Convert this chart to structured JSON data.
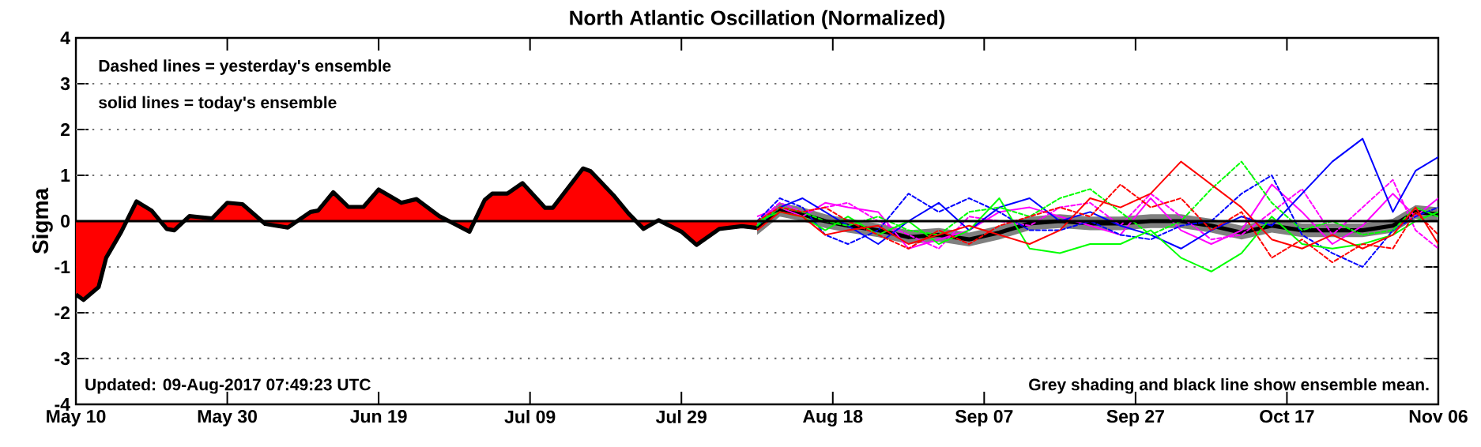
{
  "chart_data": {
    "type": "line",
    "title": "North Atlantic Oscillation (Normalized)",
    "ylabel": "Sigma",
    "xlim": [
      "2017-05-10",
      "2017-11-06"
    ],
    "xticks": [
      {
        "value": "2017-05-10",
        "label": "May 10"
      },
      {
        "value": "2017-05-30",
        "label": "May 30"
      },
      {
        "value": "2017-06-19",
        "label": "Jun 19"
      },
      {
        "value": "2017-07-09",
        "label": "Jul 09"
      },
      {
        "value": "2017-07-29",
        "label": "Jul 29"
      },
      {
        "value": "2017-08-18",
        "label": "Aug 18"
      },
      {
        "value": "2017-09-07",
        "label": "Sep 07"
      },
      {
        "value": "2017-09-27",
        "label": "Sep 27"
      },
      {
        "value": "2017-10-17",
        "label": "Oct 17"
      },
      {
        "value": "2017-11-06",
        "label": "Nov 06"
      }
    ],
    "ylim": [
      -4,
      4
    ],
    "yticks": [
      -4,
      -3,
      -2,
      -1,
      0,
      1,
      2,
      3,
      4
    ],
    "grid": "y",
    "ref_lines": [
      {
        "axis": "y",
        "value": 0,
        "color": "#000000",
        "line_style": "solid"
      }
    ],
    "annotations": [
      "Dashed lines = yesterday's ensemble",
      "solid lines = today's ensemble",
      "Updated: 09-Aug-2017 07:49:23 UTC",
      "Grey shading and black line show ensemble mean."
    ],
    "series": [
      {
        "type": "area",
        "color": "#ff0000",
        "x": [
          "2017-05-10",
          "2017-05-11",
          "2017-05-13",
          "2017-05-14",
          "2017-05-16",
          "2017-05-18",
          "2017-05-20",
          "2017-05-22",
          "2017-05-23",
          "2017-05-25",
          "2017-05-28",
          "2017-05-30",
          "2017-06-01",
          "2017-06-04",
          "2017-06-07",
          "2017-06-10",
          "2017-06-11",
          "2017-06-13",
          "2017-06-15",
          "2017-06-17",
          "2017-06-19",
          "2017-06-22",
          "2017-06-24",
          "2017-06-27",
          "2017-06-29",
          "2017-07-01",
          "2017-07-03",
          "2017-07-04",
          "2017-07-06",
          "2017-07-08",
          "2017-07-11",
          "2017-07-12",
          "2017-07-16",
          "2017-07-17",
          "2017-07-20",
          "2017-07-22",
          "2017-07-24",
          "2017-07-26",
          "2017-07-29",
          "2017-07-31",
          "2017-08-03",
          "2017-08-06",
          "2017-08-08"
        ],
        "values": [
          -1.6,
          -1.72,
          -1.44,
          -0.8,
          -0.23,
          0.43,
          0.23,
          -0.17,
          -0.2,
          0.11,
          0.06,
          0.4,
          0.37,
          -0.06,
          -0.14,
          0.2,
          0.23,
          0.63,
          0.31,
          0.31,
          0.69,
          0.4,
          0.48,
          0.11,
          -0.06,
          -0.23,
          0.46,
          0.6,
          0.6,
          0.83,
          0.29,
          0.29,
          1.15,
          1.09,
          0.57,
          0.17,
          -0.17,
          0.02,
          -0.23,
          -0.52,
          -0.17,
          -0.11,
          -0.15
        ]
      },
      {
        "color": "#ff0000",
        "line_style": "solid",
        "values": [
          -0.2,
          0.2,
          0.1,
          -0.3,
          -0.2,
          -0.1,
          -0.5,
          -0.3,
          -0.1,
          -0.3,
          -0.5,
          -0.2,
          0.5,
          0.3,
          0.6,
          1.3,
          0.8,
          0.3,
          -0.4,
          -0.6,
          -0.3,
          -0.6,
          -0.3,
          0.3,
          -0.5
        ]
      },
      {
        "color": "#ff0000",
        "line_style": "dashed",
        "values": [
          0.0,
          0.3,
          0.2,
          0.3,
          0.0,
          -0.3,
          -0.6,
          -0.2,
          -0.5,
          -0.1,
          0.1,
          0.3,
          0.1,
          0.8,
          0.3,
          0.5,
          -0.2,
          0.2,
          -0.8,
          -0.4,
          -0.9,
          -0.5,
          -0.6,
          0.2,
          -0.3
        ]
      },
      {
        "color": "#00ff00",
        "line_style": "solid",
        "values": [
          0.0,
          0.2,
          0.1,
          -0.2,
          0.1,
          -0.3,
          0.0,
          -0.5,
          -0.2,
          0.5,
          -0.6,
          -0.7,
          -0.5,
          -0.5,
          -0.2,
          -0.8,
          -1.1,
          -0.7,
          0.1,
          -0.5,
          -0.6,
          -0.5,
          -0.3,
          0.0,
          0.2
        ]
      },
      {
        "color": "#00ff00",
        "line_style": "dashed",
        "values": [
          -0.1,
          0.3,
          0.2,
          0.0,
          -0.1,
          0.1,
          -0.2,
          -0.3,
          0.2,
          0.3,
          0.1,
          0.5,
          0.7,
          0.2,
          -0.3,
          0.0,
          0.7,
          1.3,
          0.4,
          -0.2,
          0.0,
          -0.3,
          -0.2,
          0.3,
          0.1
        ]
      },
      {
        "color": "#0000ff",
        "line_style": "solid",
        "values": [
          -0.1,
          0.3,
          0.5,
          0.2,
          -0.1,
          -0.5,
          0.0,
          0.4,
          -0.2,
          0.3,
          0.5,
          0.0,
          0.2,
          -0.1,
          -0.3,
          -0.6,
          -0.2,
          0.1,
          -0.1,
          0.6,
          1.3,
          1.8,
          0.2,
          1.1,
          1.4
        ]
      },
      {
        "color": "#0000ff",
        "line_style": "dashed",
        "values": [
          0.0,
          0.5,
          0.3,
          -0.3,
          -0.5,
          -0.2,
          0.6,
          0.2,
          0.5,
          0.2,
          -0.2,
          -0.2,
          0.0,
          -0.3,
          -0.4,
          -0.1,
          0.0,
          0.6,
          1.0,
          -0.3,
          -0.7,
          -1.0,
          -0.2,
          0.1,
          0.3
        ]
      },
      {
        "color": "#ff00ff",
        "line_style": "solid",
        "values": [
          0.1,
          0.3,
          0.1,
          0.4,
          0.3,
          0.2,
          -0.6,
          -0.4,
          -0.2,
          0.2,
          0.3,
          0.1,
          -0.1,
          -0.3,
          0.5,
          -0.2,
          -0.5,
          -0.2,
          0.8,
          0.2,
          -0.5,
          -0.1,
          0.6,
          0.1,
          0.5
        ]
      },
      {
        "color": "#ff00ff",
        "line_style": "dashed",
        "values": [
          0.0,
          0.4,
          0.2,
          0.3,
          0.4,
          0.0,
          -0.3,
          -0.6,
          0.1,
          0.0,
          -0.1,
          0.3,
          0.4,
          -0.1,
          0.6,
          0.1,
          -0.4,
          -0.3,
          0.2,
          0.7,
          -0.3,
          0.3,
          0.9,
          -0.2,
          -0.6
        ]
      },
      {
        "color": "#000000",
        "line_style": "solid",
        "values": [
          -0.15,
          0.25,
          0.15,
          0.0,
          -0.1,
          -0.2,
          -0.35,
          -0.3,
          -0.4,
          -0.25,
          -0.05,
          0.0,
          -0.05,
          -0.05,
          0.0,
          0.0,
          -0.1,
          -0.25,
          -0.1,
          -0.2,
          -0.2,
          -0.2,
          -0.1,
          0.2,
          0.15
        ],
        "lower": [
          -0.3,
          0.1,
          0.0,
          -0.15,
          -0.25,
          -0.35,
          -0.5,
          -0.45,
          -0.55,
          -0.4,
          -0.2,
          -0.15,
          -0.2,
          -0.2,
          -0.15,
          -0.15,
          -0.25,
          -0.4,
          -0.25,
          -0.35,
          -0.35,
          -0.35,
          -0.25,
          0.05,
          0.0
        ],
        "upper": [
          0.0,
          0.4,
          0.3,
          0.15,
          0.05,
          -0.05,
          -0.2,
          -0.15,
          -0.25,
          -0.1,
          0.1,
          0.15,
          0.1,
          0.1,
          0.15,
          0.15,
          0.05,
          -0.1,
          0.05,
          -0.05,
          -0.05,
          -0.05,
          0.05,
          0.35,
          0.3
        ]
      }
    ],
    "x": [
      "2017-08-08",
      "2017-08-11",
      "2017-08-14",
      "2017-08-17",
      "2017-08-20",
      "2017-08-24",
      "2017-08-28",
      "2017-09-01",
      "2017-09-05",
      "2017-09-09",
      "2017-09-13",
      "2017-09-17",
      "2017-09-21",
      "2017-09-25",
      "2017-09-29",
      "2017-10-03",
      "2017-10-07",
      "2017-10-11",
      "2017-10-15",
      "2017-10-19",
      "2017-10-23",
      "2017-10-27",
      "2017-10-31",
      "2017-11-03",
      "2017-11-06"
    ]
  }
}
